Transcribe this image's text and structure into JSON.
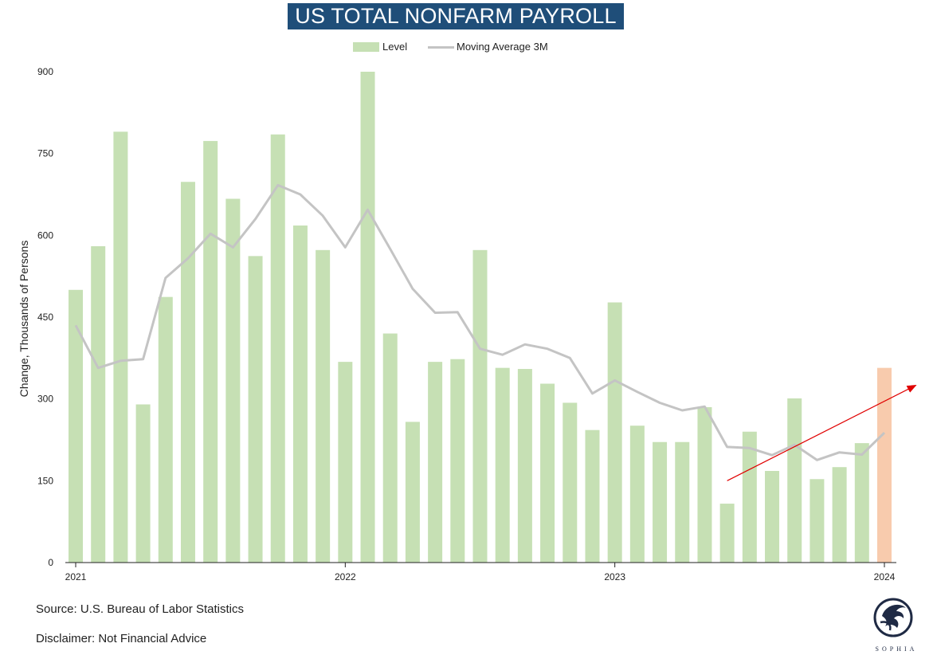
{
  "title": "US TOTAL NONFARM PAYROLL",
  "legend": {
    "level": "Level",
    "moving_average": "Moving Average 3M"
  },
  "source": "Source: U.S. Bureau of Labor Statistics",
  "disclaimer": "Disclaimer: Not Financial Advice",
  "logo_text": "SOPHIA",
  "colors": {
    "bar": "#c6e0b4",
    "highlight_bar": "#f8cbad",
    "moving_average": "#c4c4c4",
    "trend_arrow": "#e00000",
    "title_bg": "#1f4e79"
  },
  "chart_data": {
    "type": "bar",
    "title": "US TOTAL NONFARM PAYROLL",
    "ylabel": "Change, Thousands of Persons",
    "xlabel": "",
    "ylim": [
      0,
      900
    ],
    "yticks": [
      0,
      150,
      300,
      450,
      600,
      750,
      900
    ],
    "xticks": [
      {
        "label": "2021",
        "index": 0
      },
      {
        "label": "2022",
        "index": 12
      },
      {
        "label": "2023",
        "index": 24
      },
      {
        "label": "2024",
        "index": 36
      }
    ],
    "categories": [
      "2021-01",
      "2021-02",
      "2021-03",
      "2021-04",
      "2021-05",
      "2021-06",
      "2021-07",
      "2021-08",
      "2021-09",
      "2021-10",
      "2021-11",
      "2021-12",
      "2022-01",
      "2022-02",
      "2022-03",
      "2022-04",
      "2022-05",
      "2022-06",
      "2022-07",
      "2022-08",
      "2022-09",
      "2022-10",
      "2022-11",
      "2022-12",
      "2023-01",
      "2023-02",
      "2023-03",
      "2023-04",
      "2023-05",
      "2023-06",
      "2023-07",
      "2023-08",
      "2023-09",
      "2023-10",
      "2023-11",
      "2023-12",
      "2024-01"
    ],
    "series": [
      {
        "name": "Level",
        "type": "bar",
        "values": [
          500,
          580,
          790,
          290,
          487,
          698,
          773,
          667,
          562,
          785,
          618,
          573,
          368,
          900,
          420,
          258,
          368,
          373,
          573,
          357,
          355,
          328,
          293,
          243,
          477,
          251,
          221,
          221,
          285,
          108,
          240,
          168,
          301,
          153,
          175,
          219,
          357
        ],
        "highlight_index": 36
      },
      {
        "name": "Moving Average 3M",
        "type": "line",
        "values": [
          435,
          357,
          370,
          373,
          522,
          558,
          603,
          578,
          630,
          692,
          675,
          636,
          578,
          647,
          575,
          502,
          458,
          459,
          392,
          381,
          400,
          392,
          375,
          310,
          334,
          313,
          293,
          279,
          286,
          212,
          210,
          197,
          216,
          188,
          202,
          198,
          238
        ]
      }
    ],
    "annotations": [
      {
        "type": "arrow",
        "from": {
          "x_index": 29,
          "y": 150
        },
        "to": {
          "x_index": 37.4,
          "y": 325
        }
      }
    ]
  }
}
